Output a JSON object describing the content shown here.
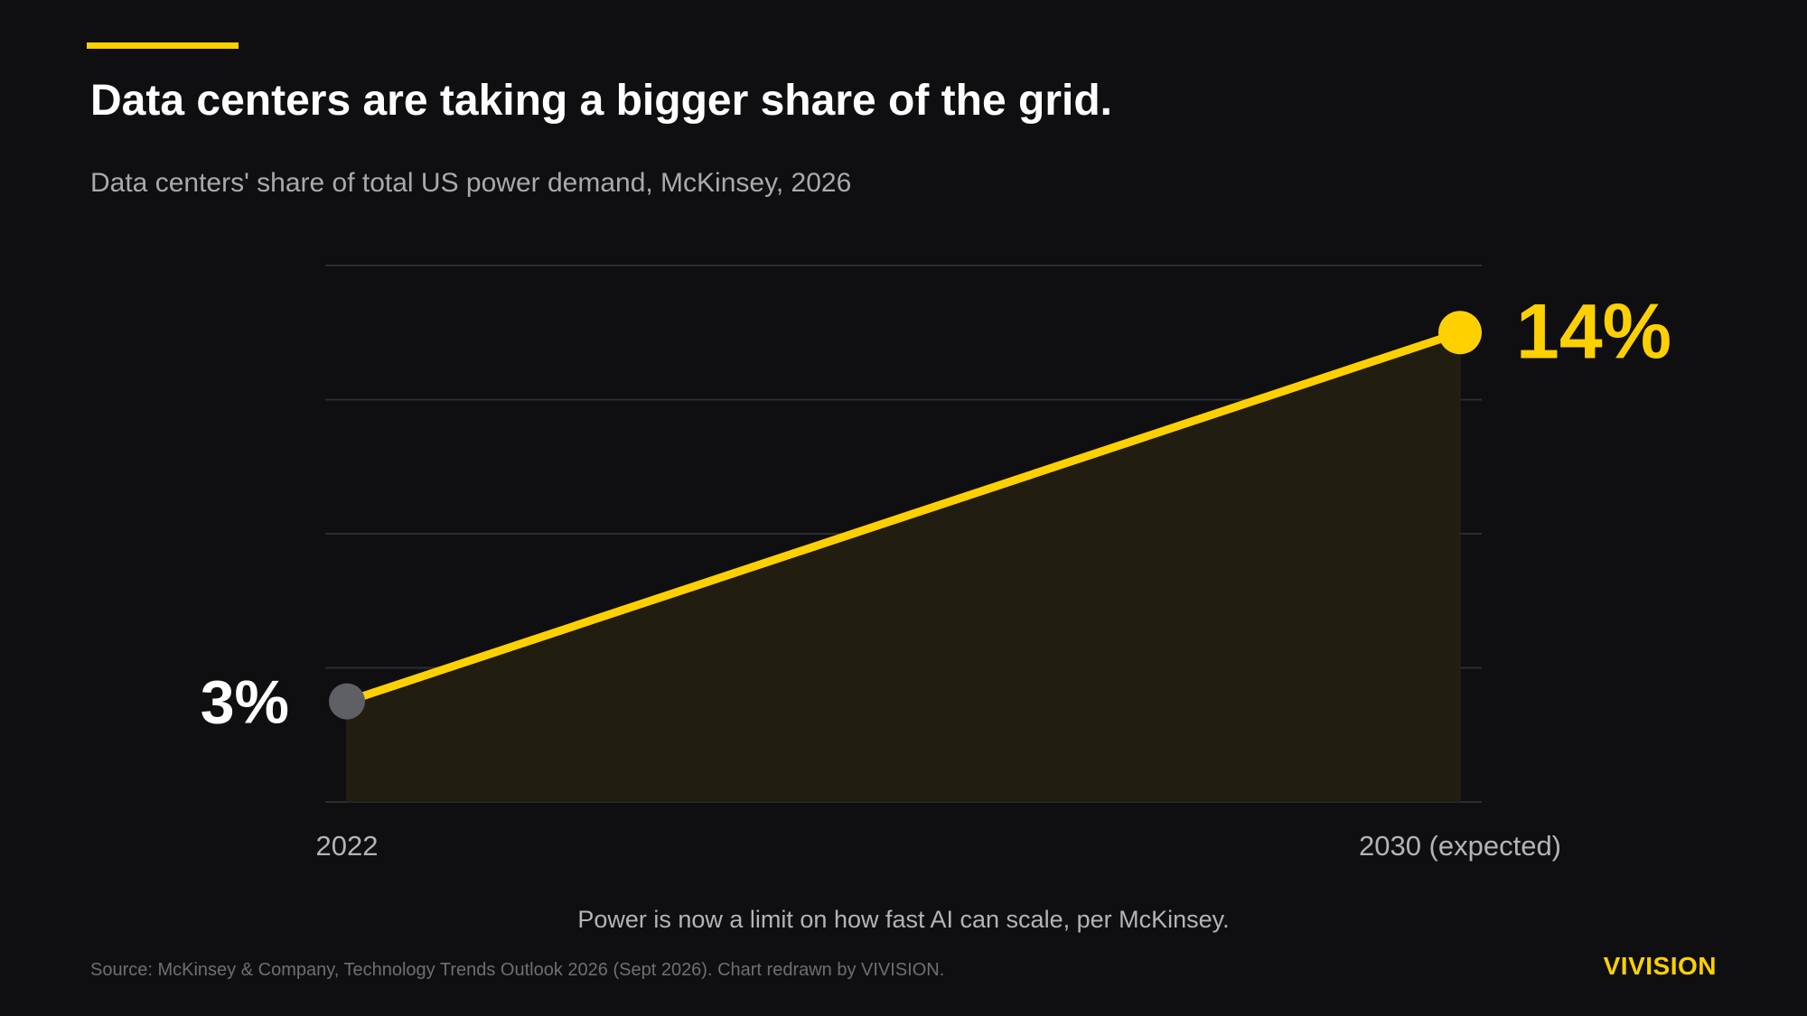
{
  "title": "Data centers are taking a bigger share of the grid.",
  "subtitle": "Data centers' share of total US power demand, McKinsey, 2026",
  "footnote": "Power is now a limit on how fast AI can scale, per McKinsey.",
  "source": "Source: McKinsey & Company, Technology Trends Outlook 2026 (Sept 2026). Chart redrawn by VIVISION.",
  "brand": "VIVISION",
  "colors": {
    "accent": "#FFD000",
    "background": "#0f0f11",
    "start_point": "#5f5f66",
    "gridline": "#2d2d31",
    "area_fill": "#211d10"
  },
  "chart_data": {
    "type": "line",
    "categories": [
      "2022",
      "2030 (expected)"
    ],
    "values": [
      3,
      14
    ],
    "value_labels": [
      "3%",
      "14%"
    ],
    "ylim": [
      0,
      16
    ],
    "grid": true,
    "gridline_values": [
      0,
      4,
      8,
      12,
      16
    ],
    "area_fill": true
  }
}
